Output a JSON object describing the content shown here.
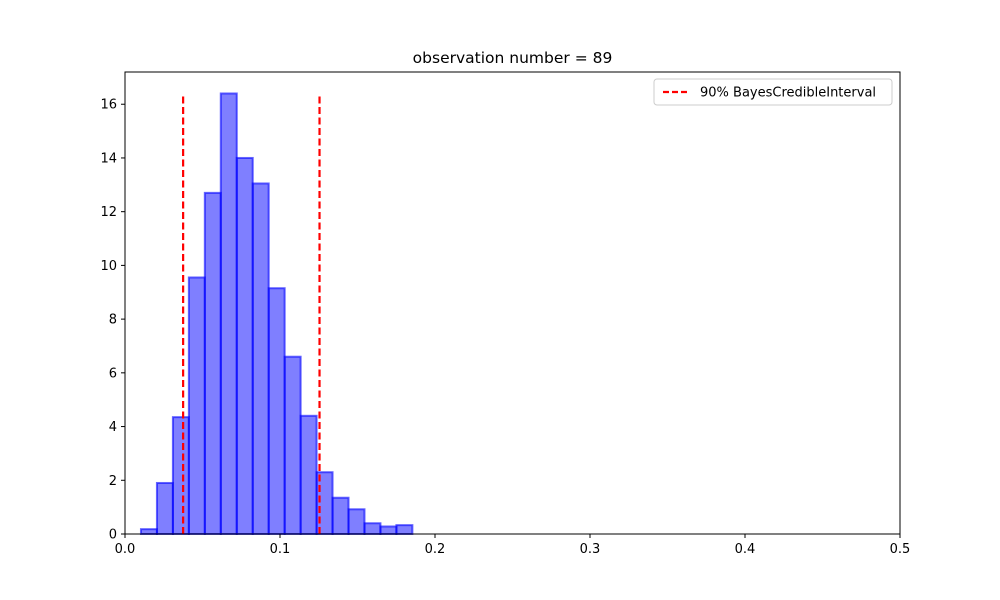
{
  "chart_data": {
    "type": "bar",
    "title": "observation number = 89",
    "xlabel": "",
    "ylabel": "",
    "xlim": [
      0,
      0.5
    ],
    "ylim": [
      0,
      17.2
    ],
    "xticks": [
      0.0,
      0.1,
      0.2,
      0.3,
      0.4,
      0.5
    ],
    "xtick_labels": [
      "0.0",
      "0.1",
      "0.2",
      "0.3",
      "0.4",
      "0.5"
    ],
    "yticks": [
      0,
      2,
      4,
      6,
      8,
      10,
      12,
      14,
      16
    ],
    "ytick_labels": [
      "0",
      "2",
      "4",
      "6",
      "8",
      "10",
      "12",
      "14",
      "16"
    ],
    "grid": false,
    "histogram": {
      "bin_width": 0.0103,
      "bin_starts": [
        0.0103,
        0.0206,
        0.0309,
        0.0412,
        0.0515,
        0.0618,
        0.0721,
        0.0824,
        0.0927,
        0.103,
        0.1133,
        0.1236,
        0.1339,
        0.1442,
        0.1545,
        0.1648,
        0.1751
      ],
      "values": [
        0.18,
        1.9,
        4.35,
        9.55,
        12.7,
        16.4,
        14.0,
        13.05,
        9.15,
        6.6,
        4.4,
        2.3,
        1.35,
        0.92,
        0.4,
        0.28,
        0.33
      ],
      "fill_color": "#0000ff",
      "fill_opacity": 0.5,
      "edge_color": "#0000ff"
    },
    "interval_lines": [
      {
        "x": 0.0375,
        "y_top": 16.3
      },
      {
        "x": 0.1255,
        "y_top": 16.3
      }
    ],
    "interval_color": "#ff0000",
    "legend": {
      "placement": "top-right",
      "entries": [
        {
          "label": "90% BayesCredibleInterval",
          "style": "dashed",
          "color": "#ff0000"
        }
      ]
    }
  }
}
